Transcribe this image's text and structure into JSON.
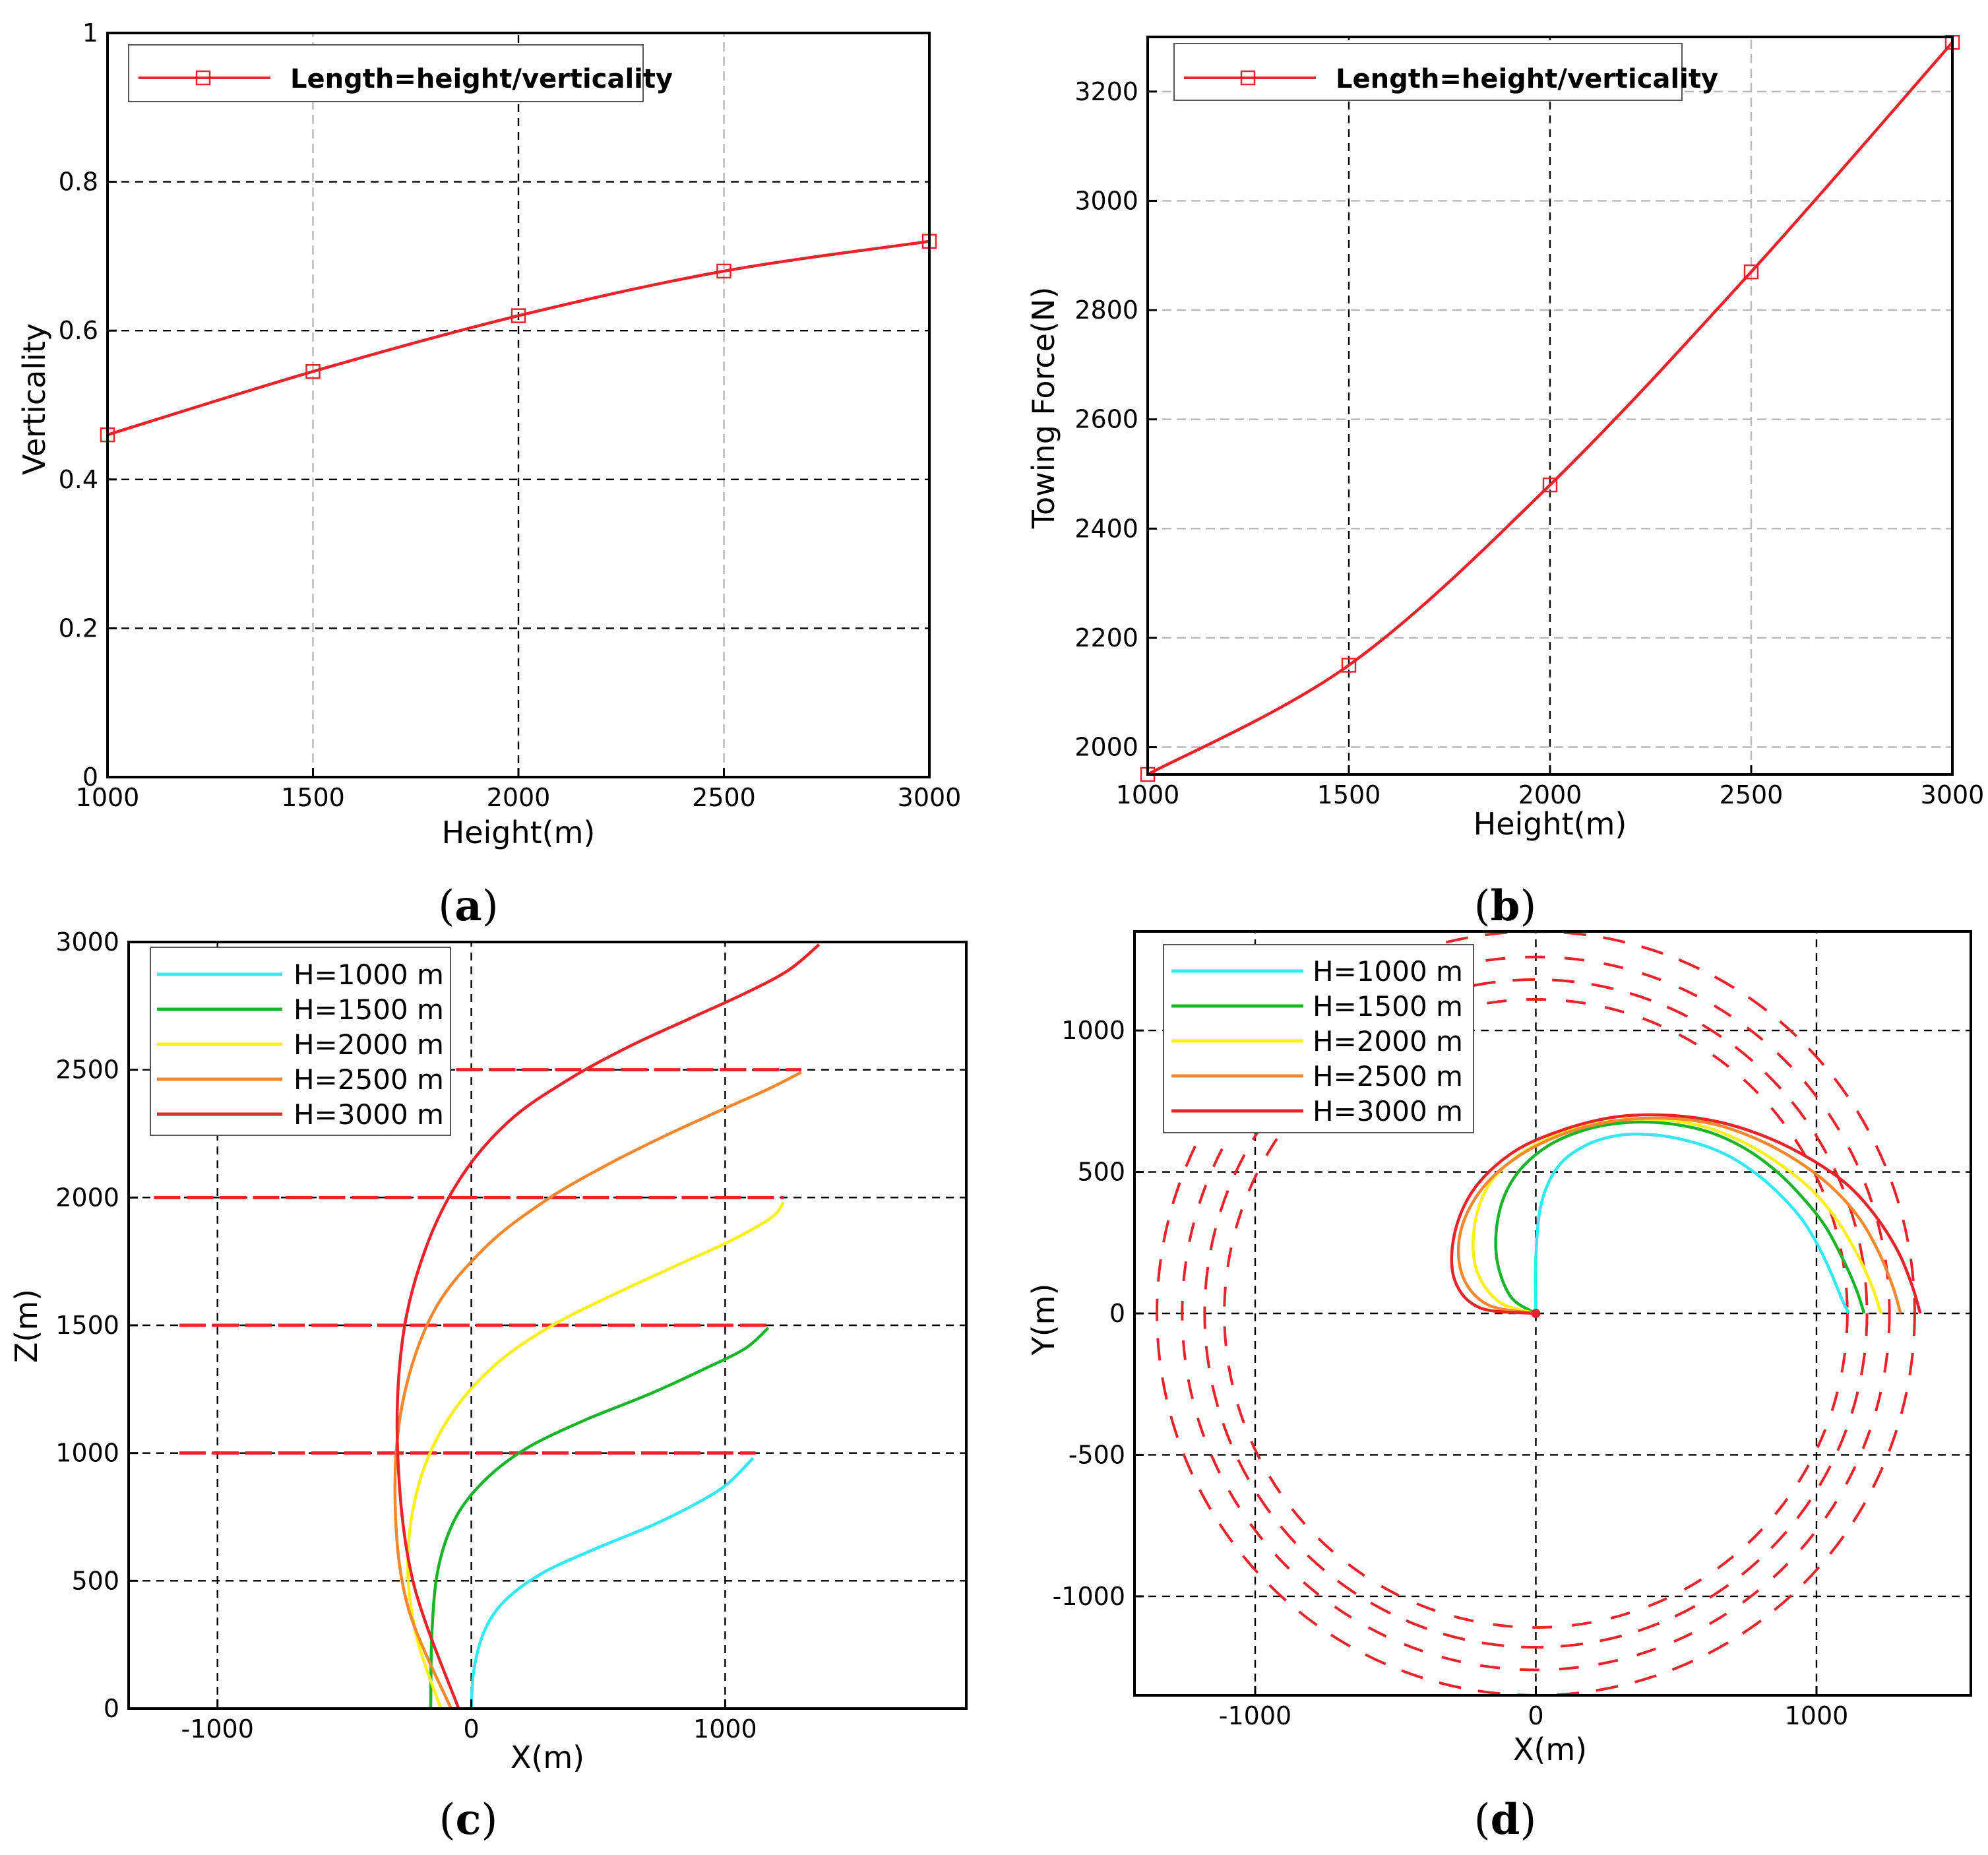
{
  "colors": {
    "red": "#e8232a",
    "cyan": "#33e8f0",
    "green": "#1ab42a",
    "yellow": "#f8f018",
    "orange": "#f5882e"
  },
  "chart_data": [
    {
      "id": "a",
      "type": "line",
      "caption_label": "a",
      "xlabel": "Height(m)",
      "ylabel": "Verticality",
      "xlim": [
        1000,
        3000
      ],
      "ylim": [
        0,
        1
      ],
      "xticks": [
        1000,
        1500,
        2000,
        2500,
        3000
      ],
      "yticks": [
        0,
        0.2,
        0.4,
        0.6,
        0.8,
        1
      ],
      "ytick_labels": [
        "0",
        "0.2",
        "0.4",
        "0.6",
        "0.8",
        "1"
      ],
      "legend_position": "top-left",
      "series": [
        {
          "name": "Length=height/verticality",
          "color": "#e8232a",
          "marker": "square",
          "x": [
            1000,
            1500,
            2000,
            2500,
            3000
          ],
          "y": [
            0.46,
            0.545,
            0.62,
            0.68,
            0.72
          ]
        }
      ]
    },
    {
      "id": "b",
      "type": "line",
      "caption_label": "b",
      "xlabel": "Height(m)",
      "ylabel": "Towing Force(N)",
      "xlim": [
        1000,
        3000
      ],
      "ylim": [
        1950,
        3300
      ],
      "xticks": [
        1000,
        1500,
        2000,
        2500,
        3000
      ],
      "yticks": [
        2000,
        2200,
        2400,
        2600,
        2800,
        3000,
        3200
      ],
      "ytick_labels": [
        "2000",
        "2200",
        "2400",
        "2600",
        "2800",
        "3000",
        "3200"
      ],
      "legend_position": "top-left",
      "series": [
        {
          "name": "Length=height/verticality",
          "color": "#e8232a",
          "marker": "square",
          "x": [
            1000,
            1500,
            2000,
            2500,
            3000
          ],
          "y": [
            1950,
            2150,
            2480,
            2870,
            3290
          ]
        }
      ]
    },
    {
      "id": "c",
      "type": "line",
      "caption_label": "c",
      "xlabel": "X(m)",
      "ylabel": "Z(m)",
      "xlim": [
        -1350,
        1950
      ],
      "ylim": [
        0,
        3000
      ],
      "xticks": [
        -1000,
        0,
        1000
      ],
      "yticks": [
        0,
        500,
        1000,
        1500,
        2000,
        2500,
        3000
      ],
      "ytick_labels": [
        "0",
        "500",
        "1000",
        "1500",
        "2000",
        "2500",
        "3000"
      ],
      "legend_position": "top-left",
      "series": [
        {
          "name": "H=1000 m",
          "color": "#33e8f0",
          "x": [
            0,
            10,
            50,
            130,
            280,
            500,
            720,
            900,
            1010,
            1110
          ],
          "y": [
            0,
            150,
            300,
            420,
            530,
            630,
            720,
            810,
            880,
            980
          ]
        },
        {
          "name": "H=1500 m",
          "color": "#1ab42a",
          "x": [
            -160,
            -155,
            -130,
            -60,
            60,
            220,
            450,
            700,
            920,
            1080,
            1170
          ],
          "y": [
            0,
            300,
            550,
            750,
            900,
            1020,
            1130,
            1230,
            1330,
            1410,
            1490
          ]
        },
        {
          "name": "H=2000 m",
          "color": "#f8f018",
          "x": [
            -120,
            -220,
            -250,
            -200,
            -80,
            100,
            320,
            560,
            800,
            1020,
            1180,
            1230
          ],
          "y": [
            0,
            300,
            600,
            900,
            1150,
            1350,
            1500,
            1620,
            1730,
            1830,
            1920,
            1980
          ]
        },
        {
          "name": "H=2500 m",
          "color": "#f5882e",
          "x": [
            -80,
            -250,
            -300,
            -270,
            -150,
            50,
            280,
            520,
            760,
            980,
            1160,
            1300
          ],
          "y": [
            0,
            400,
            800,
            1200,
            1550,
            1800,
            1980,
            2120,
            2240,
            2340,
            2420,
            2490
          ]
        },
        {
          "name": "H=3000 m",
          "color": "#e8232a",
          "x": [
            -50,
            -230,
            -290,
            -270,
            -180,
            -40,
            150,
            380,
            620,
            860,
            1080,
            1250,
            1370
          ],
          "y": [
            0,
            500,
            1000,
            1450,
            1800,
            2080,
            2300,
            2460,
            2590,
            2700,
            2800,
            2890,
            2990
          ]
        }
      ],
      "reference_lines": [
        {
          "y": 1000,
          "x_from": -1150,
          "x_to": 1120
        },
        {
          "y": 1500,
          "x_from": -1150,
          "x_to": 1180
        },
        {
          "y": 2000,
          "x_from": -1250,
          "x_to": 1230
        },
        {
          "y": 2500,
          "x_from": -60,
          "x_to": 1300
        }
      ]
    },
    {
      "id": "d",
      "type": "line",
      "caption_label": "d",
      "xlabel": "X(m)",
      "ylabel": "Y(m)",
      "xlim": [
        -1430,
        1550
      ],
      "ylim": [
        -1350,
        1350
      ],
      "xticks": [
        -1000,
        0,
        1000
      ],
      "yticks": [
        -1000,
        -500,
        0,
        500,
        1000
      ],
      "ytick_labels": [
        "-1000",
        "-500",
        "0",
        "500",
        "1000"
      ],
      "legend_position": "top-left",
      "series": [
        {
          "name": "H=1000 m",
          "color": "#33e8f0",
          "x": [
            0,
            0,
            20,
            80,
            180,
            300,
            430,
            560,
            680,
            790,
            880,
            950,
            1000,
            1040,
            1070,
            1095,
            1115
          ],
          "y": [
            0,
            200,
            390,
            520,
            595,
            630,
            630,
            605,
            560,
            490,
            410,
            330,
            250,
            170,
            100,
            40,
            0
          ]
        },
        {
          "name": "H=1500 m",
          "color": "#1ab42a",
          "x": [
            0,
            -90,
            -140,
            -130,
            -70,
            40,
            180,
            330,
            480,
            620,
            750,
            860,
            950,
            1030,
            1090,
            1140,
            1170
          ],
          "y": [
            0,
            60,
            200,
            360,
            490,
            590,
            650,
            675,
            670,
            640,
            580,
            500,
            410,
            310,
            200,
            90,
            0
          ]
        },
        {
          "name": "H=2000 m",
          "color": "#f8f018",
          "x": [
            0,
            -130,
            -210,
            -220,
            -170,
            -60,
            100,
            270,
            440,
            600,
            750,
            880,
            990,
            1080,
            1150,
            1200,
            1230
          ],
          "y": [
            0,
            40,
            150,
            300,
            450,
            560,
            640,
            680,
            685,
            660,
            600,
            520,
            430,
            320,
            200,
            90,
            0
          ]
        },
        {
          "name": "H=2500 m",
          "color": "#f5882e",
          "x": [
            0,
            -170,
            -260,
            -270,
            -200,
            -70,
            100,
            280,
            460,
            630,
            790,
            930,
            1050,
            1150,
            1220,
            1270,
            1300
          ],
          "y": [
            0,
            30,
            130,
            280,
            430,
            550,
            635,
            680,
            690,
            670,
            615,
            540,
            450,
            340,
            220,
            100,
            0
          ]
        },
        {
          "name": "H=3000 m",
          "color": "#e8232a",
          "x": [
            0,
            -200,
            -290,
            -290,
            -220,
            -80,
            100,
            290,
            480,
            660,
            830,
            980,
            1110,
            1210,
            1290,
            1340,
            1370
          ],
          "y": [
            0,
            20,
            120,
            280,
            440,
            570,
            650,
            695,
            700,
            675,
            620,
            545,
            455,
            345,
            220,
            100,
            0
          ]
        }
      ],
      "reference_rings": [
        1110,
        1180,
        1260,
        1350
      ]
    }
  ],
  "legend_c": [
    "H=1000 m",
    "H=1500 m",
    "H=2000 m",
    "H=2500 m",
    "H=3000 m"
  ],
  "legend_d": [
    "H=1000 m",
    "H=1500 m",
    "H=2000 m",
    "H=2500 m",
    "H=3000 m"
  ]
}
